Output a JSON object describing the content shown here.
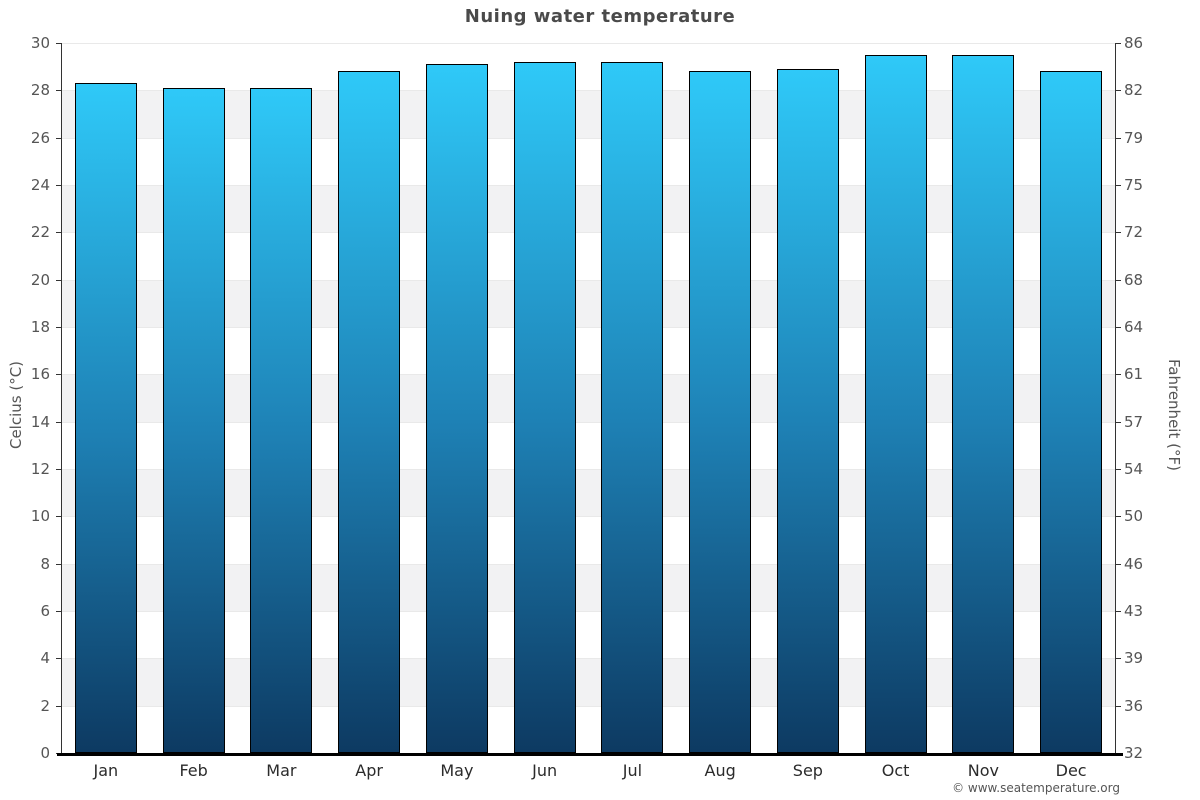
{
  "footer": {
    "copyright": "© www.seatemperature.org"
  },
  "chart_data": {
    "type": "bar",
    "title": "Nuing water temperature",
    "categories": [
      "Jan",
      "Feb",
      "Mar",
      "Apr",
      "May",
      "Jun",
      "Jul",
      "Aug",
      "Sep",
      "Oct",
      "Nov",
      "Dec"
    ],
    "series": [
      {
        "name": "Water temperature",
        "values": [
          28.3,
          28.1,
          28.1,
          28.8,
          29.1,
          29.2,
          29.2,
          28.8,
          28.9,
          29.5,
          29.5,
          28.8
        ]
      }
    ],
    "xlabel": "",
    "ylabel": "Celcius (°C)",
    "ylabel_right": "Fahrenheit (°F)",
    "ylim": [
      0,
      30
    ],
    "ytick_step_celsius": 2,
    "yticks_celsius": [
      0,
      2,
      4,
      6,
      8,
      10,
      12,
      14,
      16,
      18,
      20,
      22,
      24,
      26,
      28,
      30
    ],
    "yticks_fahrenheit_labels": [
      "32",
      "36",
      "39",
      "43",
      "46",
      "50",
      "54",
      "57",
      "61",
      "64",
      "68",
      "72",
      "75",
      "79",
      "82",
      "86"
    ],
    "grid": "alternating-horizontal-bands",
    "legend": false,
    "colors": {
      "bar_gradient_top": "#2fc9f8",
      "bar_gradient_bottom": "#0d3a62",
      "bar_border": "#000000",
      "band_alt": "#f2f2f3",
      "plot_background": "#ffffff",
      "axis_line": "#333333",
      "baseline": "#000000",
      "title_text": "#4a4a4a",
      "tick_text": "#555555",
      "month_text": "#2b2b2b",
      "copyright_text": "#555555"
    }
  }
}
